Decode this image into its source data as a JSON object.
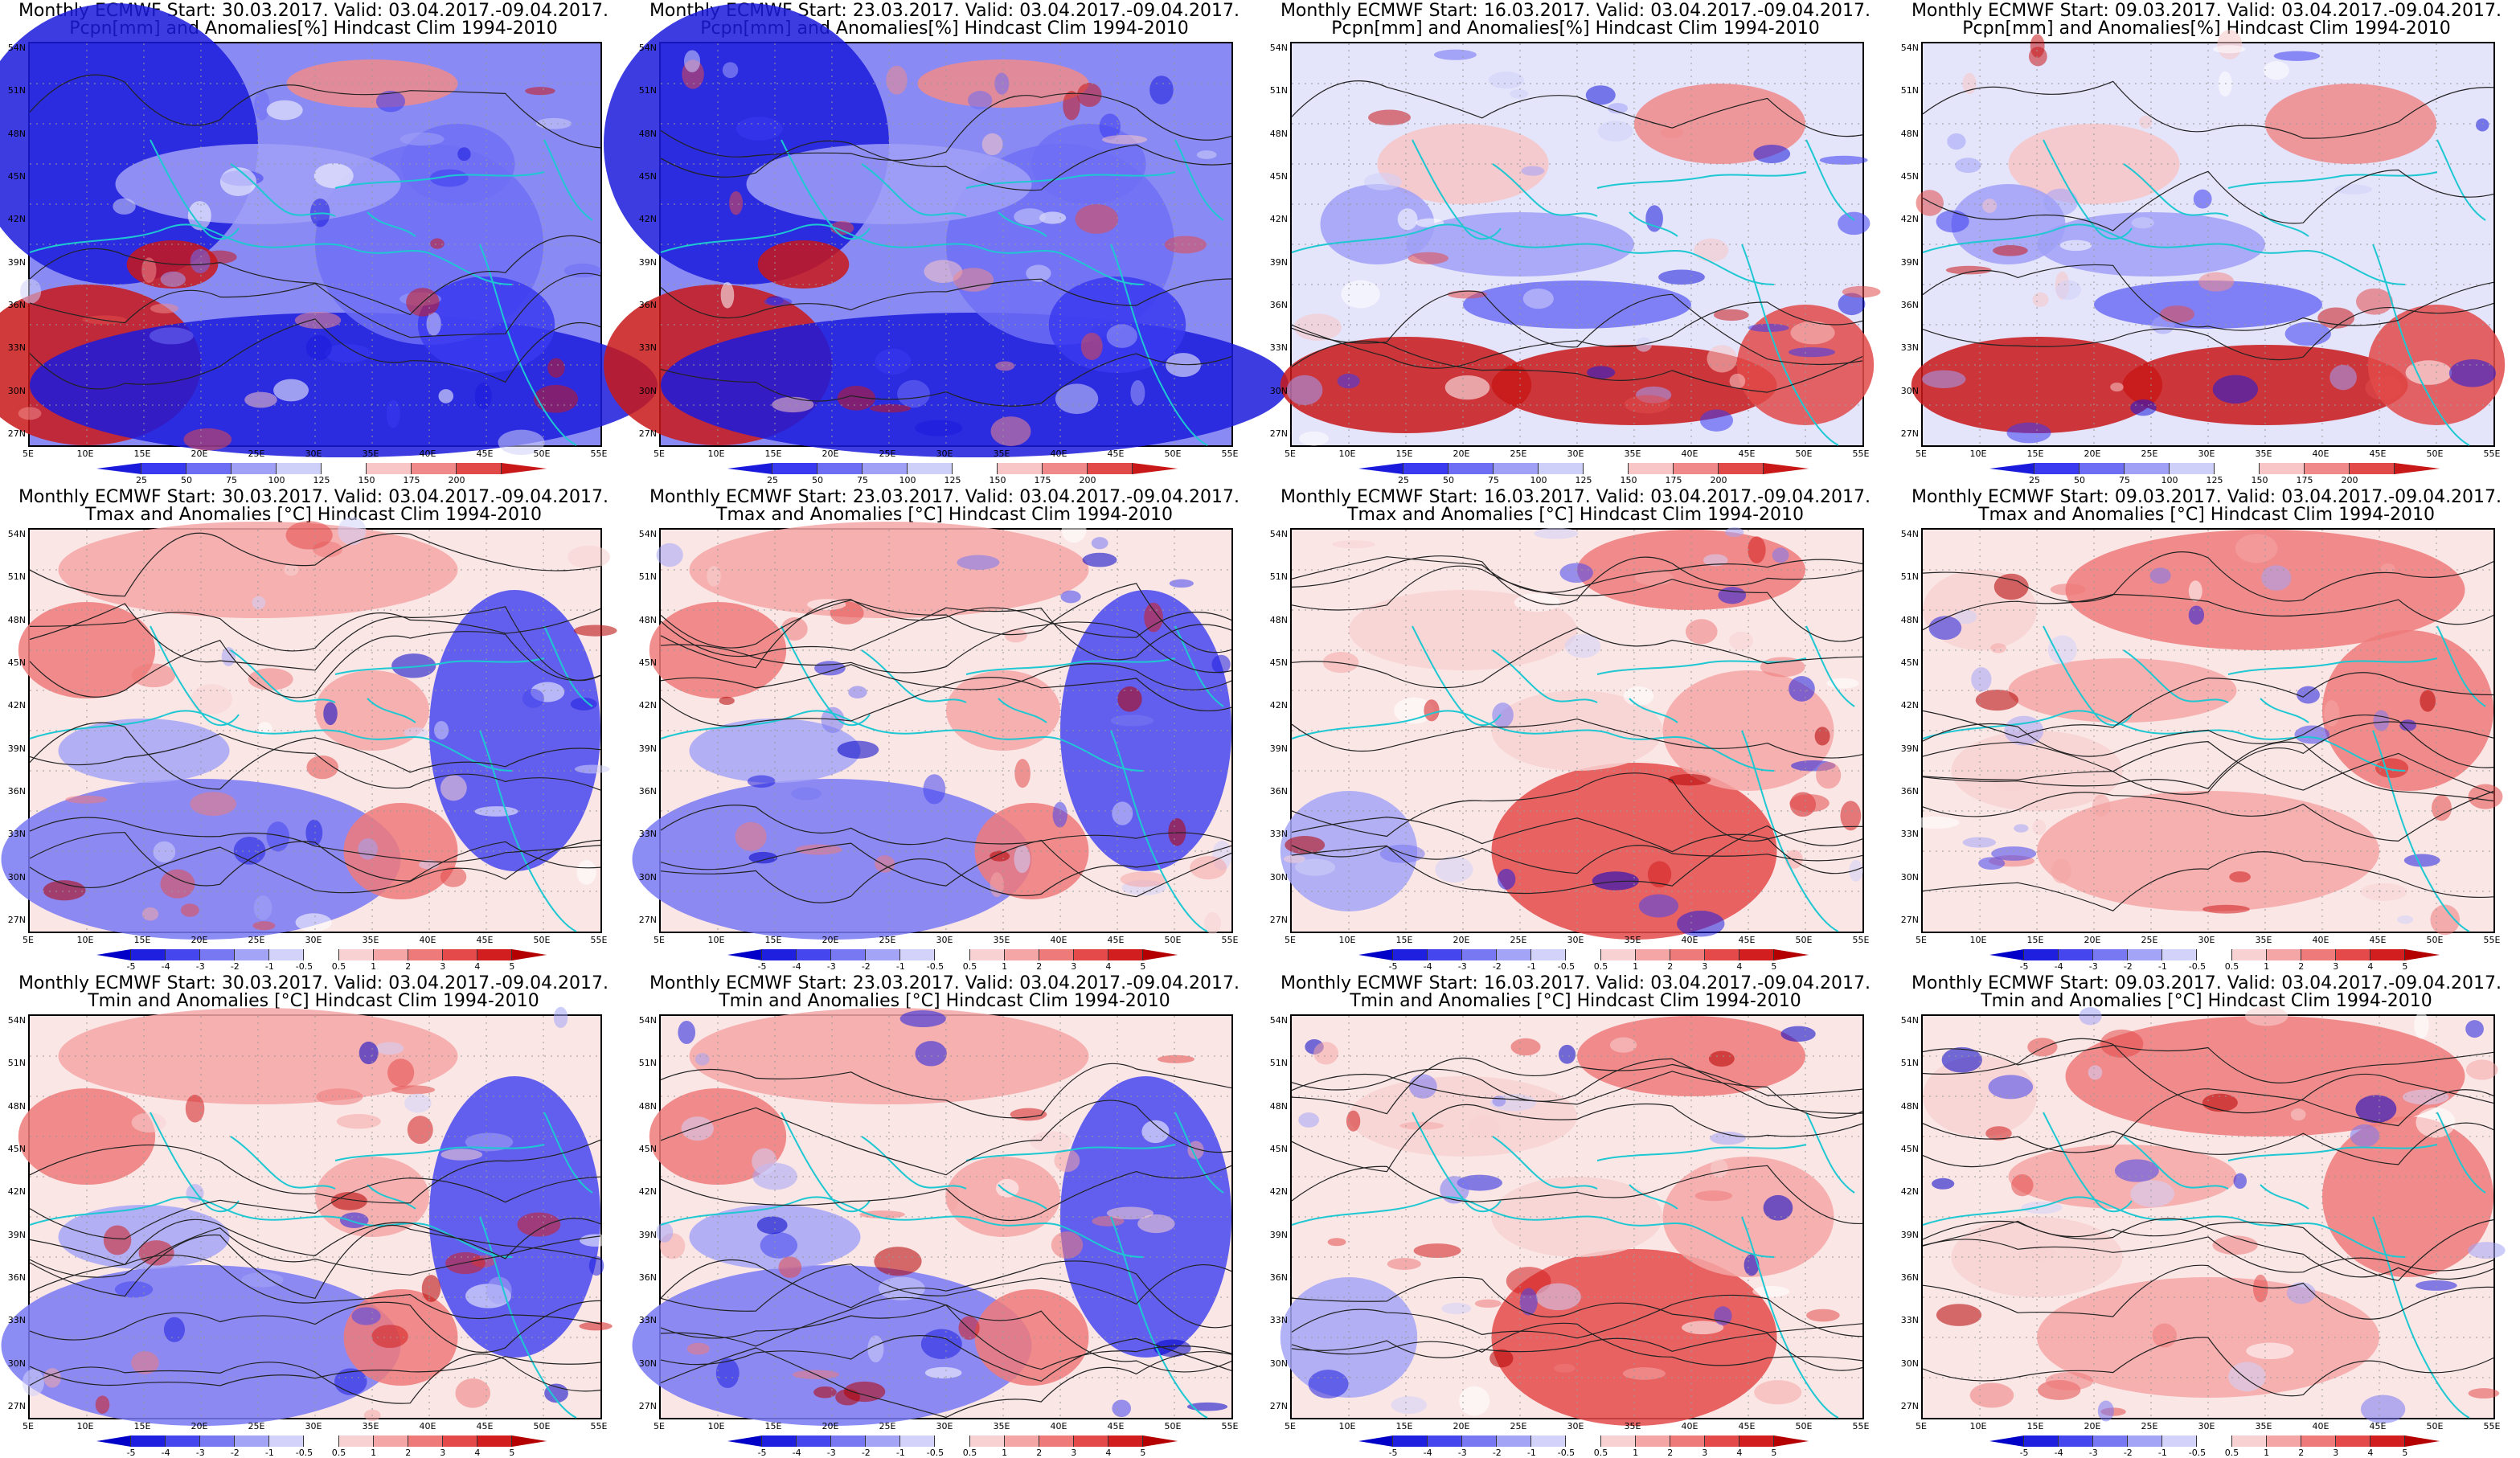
{
  "colorbars": {
    "pcpn": {
      "ticks": [
        "25",
        "50",
        "75",
        "100",
        "125",
        "150",
        "175",
        "200"
      ],
      "colors": [
        "#1a1adc",
        "#3a3af0",
        "#6e6ef5",
        "#a0a0f7",
        "#cfd0fa",
        "#ffffff",
        "#f8c6c6",
        "#f08a8a",
        "#e24a4a",
        "#c81818"
      ]
    },
    "temp": {
      "ticks": [
        "-5",
        "-4",
        "-3",
        "-2",
        "-1",
        "-0.5",
        "0.5",
        "1",
        "2",
        "3",
        "4",
        "5"
      ],
      "colors": [
        "#0000c8",
        "#1f1fe0",
        "#4646ee",
        "#7878f3",
        "#a4a4f6",
        "#d2d2fa",
        "#ffffff",
        "#f8d2d2",
        "#f4a6a6",
        "#ee7a7a",
        "#e44a4a",
        "#d21e1e",
        "#b40000"
      ]
    }
  },
  "axes": {
    "lat_labels": [
      "54N",
      "51N",
      "48N",
      "45N",
      "42N",
      "39N",
      "36N",
      "33N",
      "30N",
      "27N"
    ],
    "lon_labels": [
      "5E",
      "10E",
      "15E",
      "20E",
      "25E",
      "30E",
      "35E",
      "40E",
      "45E",
      "50E",
      "55E"
    ]
  },
  "rows": [
    {
      "variable": "pcpn",
      "subtitle": "Pcpn[mm] and Anomalies[%] Hindcast Clim 1994-2010",
      "panels": [
        {
          "title": "Monthly ECMWF Start: 30.03.2017. Valid: 03.04.2017.-09.04.2017.",
          "tone": "wet-low"
        },
        {
          "title": "Monthly ECMWF Start: 23.03.2017. Valid: 03.04.2017.-09.04.2017.",
          "tone": "wet-low"
        },
        {
          "title": "Monthly ECMWF Start: 16.03.2017. Valid: 03.04.2017.-09.04.2017.",
          "tone": "mixed"
        },
        {
          "title": "Monthly ECMWF Start: 09.03.2017. Valid: 03.04.2017.-09.04.2017.",
          "tone": "mixed"
        }
      ]
    },
    {
      "variable": "temp",
      "subtitle": "Tmax and Anomalies [°C] Hindcast Clim 1994-2010",
      "panels": [
        {
          "title": "Monthly ECMWF Start: 30.03.2017. Valid: 03.04.2017.-09.04.2017.",
          "tone": "cool-south"
        },
        {
          "title": "Monthly ECMWF Start: 23.03.2017. Valid: 03.04.2017.-09.04.2017.",
          "tone": "cool-south"
        },
        {
          "title": "Monthly ECMWF Start: 16.03.2017. Valid: 03.04.2017.-09.04.2017.",
          "tone": "warm-east"
        },
        {
          "title": "Monthly ECMWF Start: 09.03.2017. Valid: 03.04.2017.-09.04.2017.",
          "tone": "warm-north"
        }
      ]
    },
    {
      "variable": "temp",
      "subtitle": "Tmin and Anomalies [°C] Hindcast Clim 1994-2010",
      "panels": [
        {
          "title": "Monthly ECMWF Start: 30.03.2017. Valid: 03.04.2017.-09.04.2017.",
          "tone": "cool-south"
        },
        {
          "title": "Monthly ECMWF Start: 23.03.2017. Valid: 03.04.2017.-09.04.2017.",
          "tone": "cool-south"
        },
        {
          "title": "Monthly ECMWF Start: 16.03.2017. Valid: 03.04.2017.-09.04.2017.",
          "tone": "warm-east"
        },
        {
          "title": "Monthly ECMWF Start: 09.03.2017. Valid: 03.04.2017.-09.04.2017.",
          "tone": "warm-north"
        }
      ]
    }
  ]
}
